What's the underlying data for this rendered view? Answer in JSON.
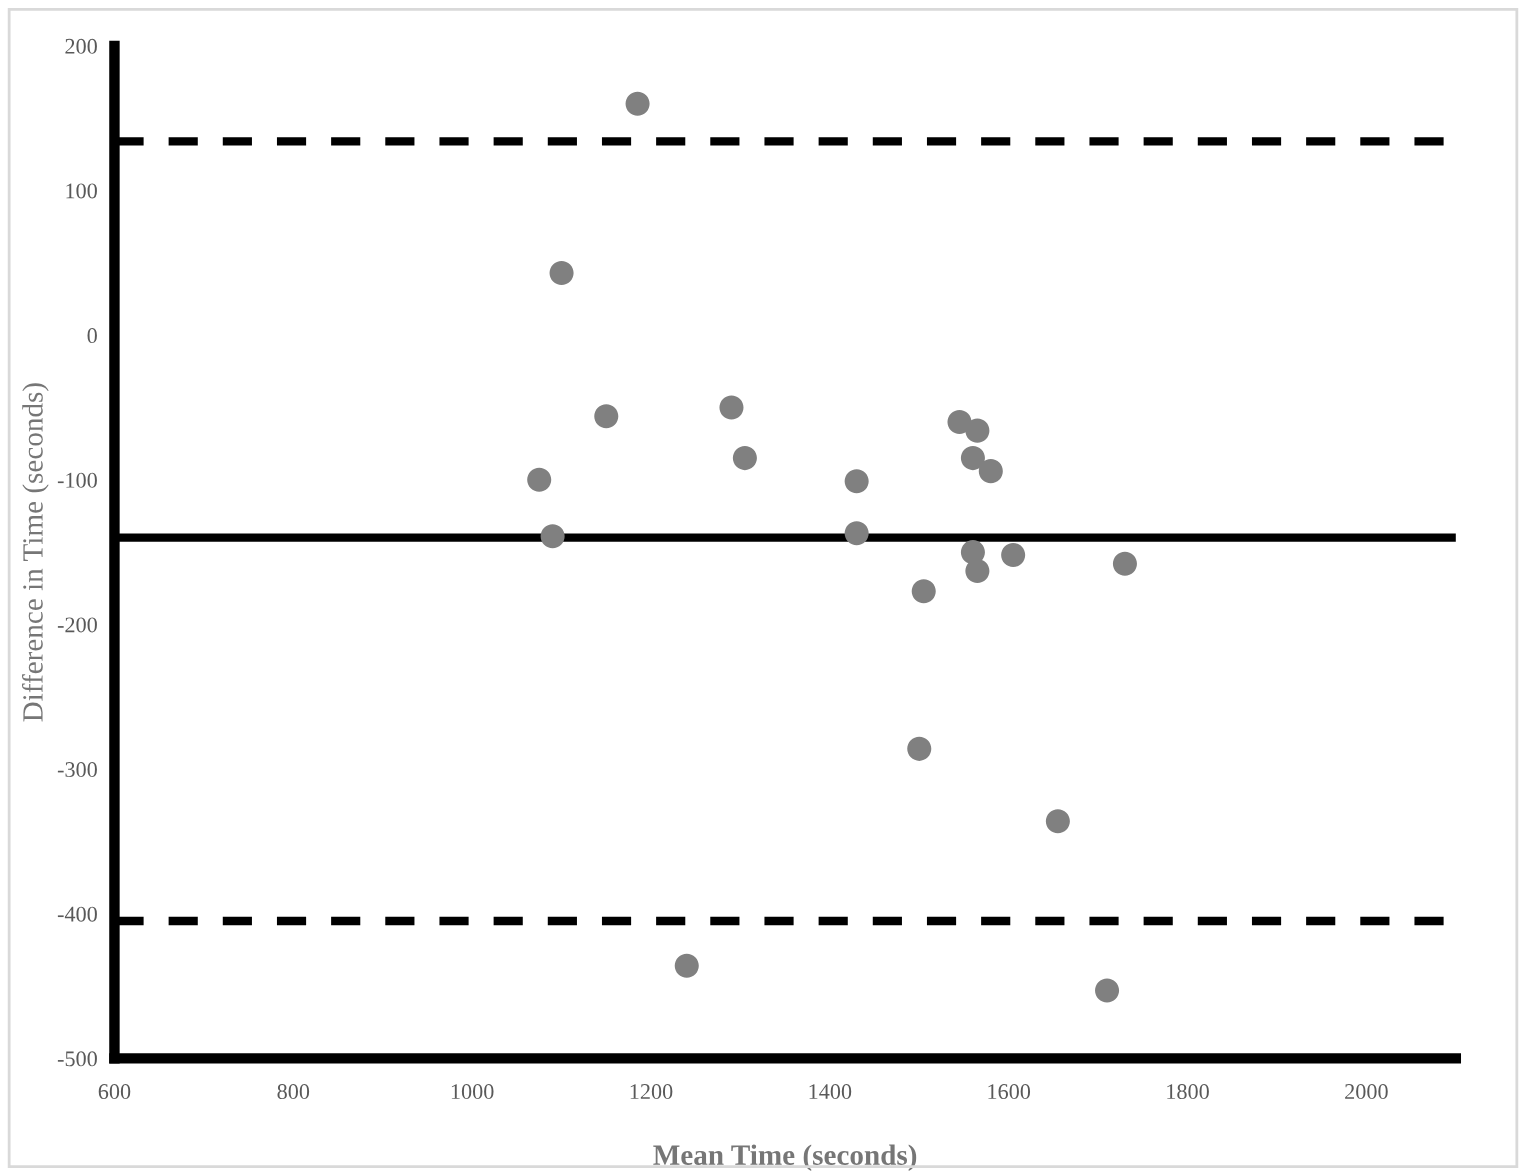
{
  "chart_data": {
    "type": "scatter",
    "xlabel": "Mean Time (seconds)",
    "ylabel": "Difference in Time (seconds)",
    "marker": "circle",
    "series": [
      {
        "color": "#808080",
        "x": [
          1075,
          1090,
          1100,
          1150,
          1185,
          1240,
          1290,
          1305,
          1430,
          1430,
          1500,
          1505,
          1545,
          1560,
          1560,
          1565,
          1565,
          1580,
          1605,
          1655,
          1710,
          1730
        ],
        "values": [
          -100,
          -139,
          43,
          -56,
          160,
          -436,
          -50,
          -85,
          -101,
          -137,
          -286,
          -177,
          -60,
          -85,
          -150,
          -66,
          -163,
          -94,
          -152,
          -336,
          -453,
          -158
        ]
      }
    ],
    "xlim": [
      600,
      2100
    ],
    "xticks": [
      600,
      800,
      1000,
      1200,
      1400,
      1600,
      1800,
      2000
    ],
    "ylim": [
      -500,
      200
    ],
    "yticks": [
      -500,
      -400,
      -300,
      -200,
      -100,
      0,
      100,
      200
    ],
    "ref_lines": [
      {
        "axis": "y",
        "value": 134,
        "line_style": "dashed",
        "color": "#000000"
      },
      {
        "axis": "y",
        "value": -140,
        "line_style": "solid",
        "color": "#000000"
      },
      {
        "axis": "y",
        "value": -405,
        "line_style": "dashed",
        "color": "#000000"
      }
    ]
  }
}
